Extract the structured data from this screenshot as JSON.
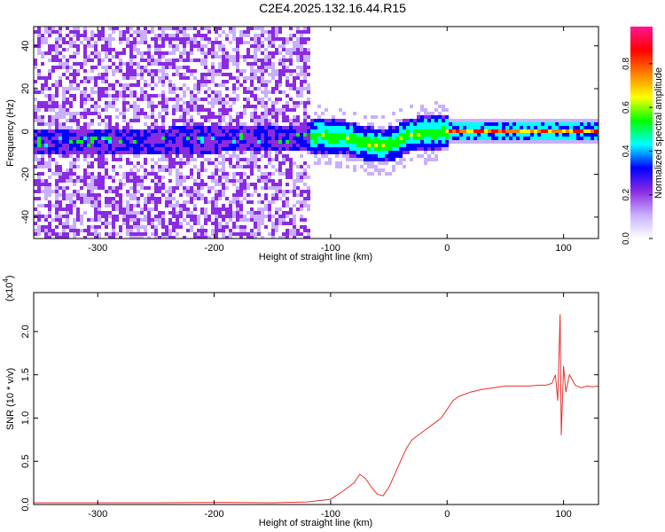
{
  "title": "C2E4.2025.132.16.44.R15",
  "chart_data": [
    {
      "type": "heatmap",
      "xlabel": "Height of straight line (km)",
      "ylabel": "Frequency (Hz)",
      "xlim": [
        -355,
        130
      ],
      "ylim": [
        -50,
        49
      ],
      "xticks": [
        -300,
        -200,
        -100,
        0,
        100
      ],
      "yticks": [
        40,
        20,
        0,
        -20,
        -40
      ],
      "colorbar": {
        "label": "Normalized spectral amplitude",
        "range": [
          0,
          0.97
        ],
        "ticks": [
          "0.0",
          "0.2",
          "0.4",
          "0.6",
          "0.8"
        ],
        "tick_values": [
          0.0,
          0.2,
          0.4,
          0.6,
          0.8
        ],
        "colors": [
          "#ffffff",
          "#c8b0ff",
          "#8a2be2",
          "#0000ff",
          "#00ffff",
          "#00ff00",
          "#ffff00",
          "#ff8000",
          "#ff0000",
          "#ff1493"
        ]
      },
      "ridge": {
        "x": [
          -355,
          -300,
          -200,
          -130,
          -110,
          -90,
          -70,
          -55,
          -45,
          -35,
          -20,
          0,
          20,
          60,
          100,
          130
        ],
        "y": [
          -4,
          -4,
          -3,
          -2,
          -1,
          -2,
          -5,
          -6,
          -4,
          -1,
          0,
          1,
          1,
          1,
          1,
          1
        ]
      },
      "grid": false
    },
    {
      "type": "line",
      "xlabel": "Height of straight line (km)",
      "ylabel": "SNR (10 * v/v)",
      "yscale_label": "(x10",
      "yscale_exp": "4",
      "xlim": [
        -355,
        130
      ],
      "ylim": [
        0,
        2.45
      ],
      "xticks": [
        -300,
        -200,
        -100,
        0,
        100
      ],
      "yticks": [
        "0.0",
        "0.5",
        "1.0",
        "1.5",
        "2.0"
      ],
      "ytick_values": [
        0.0,
        0.5,
        1.0,
        1.5,
        2.0
      ],
      "series": [
        {
          "color": "#e8302e",
          "x": [
            -355,
            -300,
            -250,
            -200,
            -150,
            -120,
            -100,
            -90,
            -80,
            -75,
            -70,
            -65,
            -60,
            -55,
            -50,
            -45,
            -40,
            -35,
            -30,
            -25,
            -20,
            -15,
            -10,
            -5,
            0,
            5,
            10,
            20,
            30,
            40,
            50,
            60,
            70,
            80,
            85,
            90,
            93,
            95,
            97,
            98,
            100,
            102,
            105,
            110,
            115,
            120,
            125,
            130
          ],
          "y": [
            0.02,
            0.02,
            0.02,
            0.025,
            0.02,
            0.03,
            0.06,
            0.15,
            0.25,
            0.35,
            0.3,
            0.2,
            0.12,
            0.1,
            0.2,
            0.35,
            0.5,
            0.65,
            0.75,
            0.8,
            0.85,
            0.9,
            0.95,
            1.0,
            1.1,
            1.2,
            1.25,
            1.3,
            1.33,
            1.35,
            1.37,
            1.37,
            1.37,
            1.38,
            1.38,
            1.4,
            1.5,
            1.2,
            2.2,
            0.8,
            1.6,
            1.3,
            1.5,
            1.38,
            1.35,
            1.37,
            1.36,
            1.37
          ]
        }
      ],
      "grid": false
    }
  ]
}
